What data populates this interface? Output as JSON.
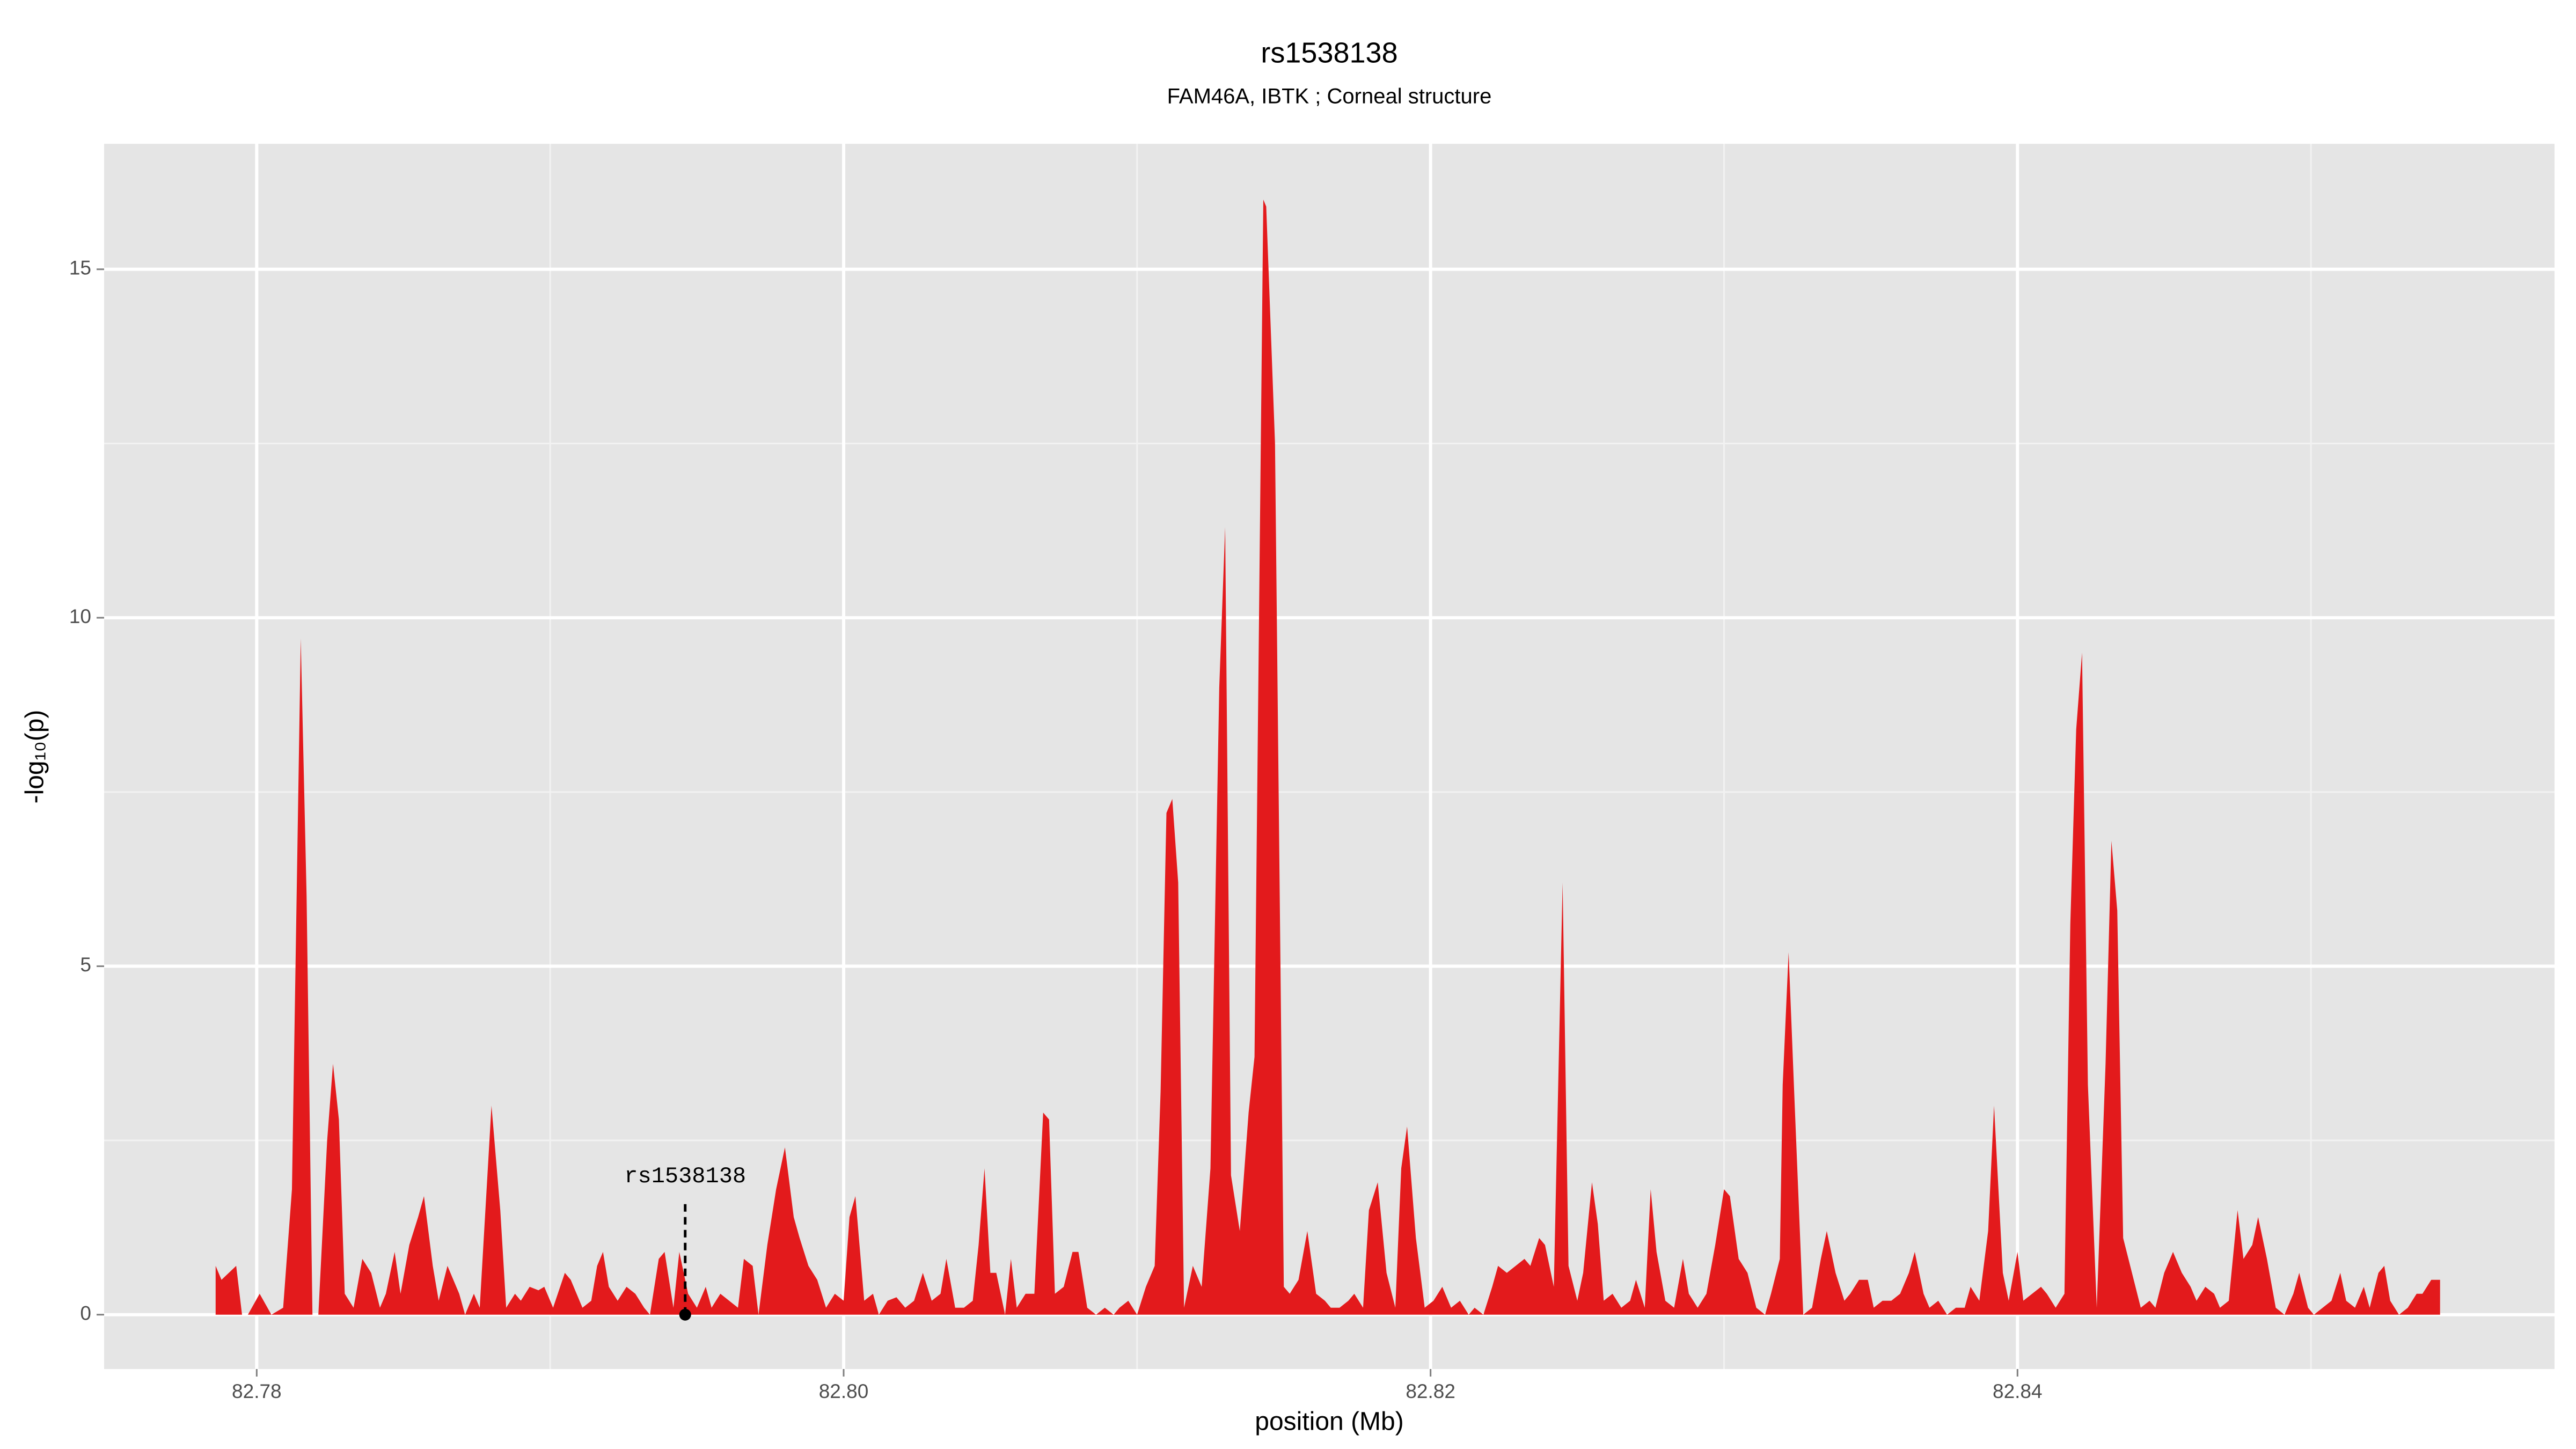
{
  "chart_data": {
    "type": "area",
    "title": "rs1538138",
    "subtitle": "FAM46A, IBTK ; Corneal structure",
    "xlabel": "position (Mb)",
    "ylabel": "-log₁₀(p)",
    "xlim": [
      82.7748,
      82.8583
    ],
    "ylim": [
      -0.78,
      16.8
    ],
    "xticks": [
      82.78,
      {
        "value": 82.8,
        "label": "82.80"
      },
      82.82,
      82.84
    ],
    "yticks": [
      0,
      5,
      10,
      15
    ],
    "xminorticks": [
      82.79,
      82.81,
      82.83,
      82.85
    ],
    "yminorticks": [
      2.5,
      7.5,
      12.5
    ],
    "grid": true,
    "series": [
      {
        "color": "#e31a1c",
        "x": [
          82.7786,
          82.7788,
          82.7793,
          82.7795,
          82.7797,
          82.7801,
          82.7805,
          82.7809,
          82.7812,
          82.7815,
          82.7817,
          82.7819,
          82.7821,
          82.7824,
          82.7826,
          82.7828,
          82.783,
          82.7833,
          82.7836,
          82.7839,
          82.7842,
          82.7844,
          82.7847,
          82.7849,
          82.7852,
          82.7855,
          82.7857,
          82.786,
          82.7862,
          82.7865,
          82.7869,
          82.7871,
          82.7874,
          82.7876,
          82.788,
          82.7883,
          82.7885,
          82.7888,
          82.789,
          82.7893,
          82.7896,
          82.7898,
          82.7901,
          82.7905,
          82.7907,
          82.7911,
          82.7914,
          82.7916,
          82.7918,
          82.792,
          82.7923,
          82.7926,
          82.7929,
          82.7932,
          82.7934,
          82.7937,
          82.7939,
          82.7942,
          82.7944,
          82.7947,
          82.795,
          82.7953,
          82.7955,
          82.7958,
          82.7961,
          82.7964,
          82.7966,
          82.7969,
          82.7971,
          82.7974,
          82.7977,
          82.798,
          82.7983,
          82.7985,
          82.7988,
          82.7991,
          82.7994,
          82.7997,
          82.8,
          82.8002,
          82.8004,
          82.8007,
          82.801,
          82.8012,
          82.8015,
          82.8018,
          82.8021,
          82.8024,
          82.8027,
          82.803,
          82.8033,
          82.8035,
          82.8038,
          82.8041,
          82.8044,
          82.8046,
          82.8048,
          82.805,
          82.8052,
          82.8055,
          82.8057,
          82.8059,
          82.8062,
          82.8065,
          82.8068,
          82.807,
          82.8072,
          82.8075,
          82.8078,
          82.808,
          82.8083,
          82.8086,
          82.8089,
          82.8092,
          82.8094,
          82.8097,
          82.81,
          82.8103,
          82.8106,
          82.8108,
          82.811,
          82.8112,
          82.8114,
          82.8116,
          82.8119,
          82.8122,
          82.8125,
          82.8128,
          82.813,
          82.8132,
          82.8135,
          82.8138,
          82.814,
          82.8143,
          82.8144,
          82.8147,
          82.815,
          82.8152,
          82.8155,
          82.8158,
          82.8161,
          82.8164,
          82.8166,
          82.8169,
          82.8172,
          82.8174,
          82.8177,
          82.8179,
          82.8182,
          82.8185,
          82.8188,
          82.819,
          82.8192,
          82.8195,
          82.8198,
          82.8201,
          82.8204,
          82.8207,
          82.821,
          82.8213,
          82.8215,
          82.8218,
          82.8221,
          82.8223,
          82.8226,
          82.8229,
          82.8232,
          82.8234,
          82.8237,
          82.8239,
          82.8242,
          82.8245,
          82.8247,
          82.825,
          82.8252,
          82.8255,
          82.8257,
          82.8259,
          82.8262,
          82.8265,
          82.8268,
          82.827,
          82.8273,
          82.8275,
          82.8277,
          82.828,
          82.8283,
          82.8286,
          82.8288,
          82.8291,
          82.8294,
          82.8297,
          82.83,
          82.8302,
          82.8305,
          82.8308,
          82.8311,
          82.8314,
          82.8316,
          82.8319,
          82.832,
          82.8322,
          82.8324,
          82.8327,
          82.833,
          82.8333,
          82.8335,
          82.8338,
          82.8341,
          82.8343,
          82.8346,
          82.8349,
          82.8351,
          82.8354,
          82.8357,
          82.836,
          82.8363,
          82.8365,
          82.8368,
          82.837,
          82.8373,
          82.8376,
          82.8379,
          82.8382,
          82.8384,
          82.8387,
          82.839,
          82.8392,
          82.8395,
          82.8397,
          82.84,
          82.8402,
          82.8405,
          82.8408,
          82.841,
          82.8413,
          82.8416,
          82.8418,
          82.842,
          82.8422,
          82.8424,
          82.8427,
          82.843,
          82.8432,
          82.8434,
          82.8436,
          82.8439,
          82.8442,
          82.8445,
          82.8447,
          82.845,
          82.8453,
          82.8456,
          82.8459,
          82.8461,
          82.8464,
          82.8467,
          82.8469,
          82.8472,
          82.8475,
          82.8477,
          82.848,
          82.8482,
          82.8485,
          82.8488,
          82.8491,
          82.8494,
          82.8496,
          82.8499,
          82.8501,
          82.8504,
          82.8507,
          82.851,
          82.8512,
          82.8515,
          82.8518,
          82.852,
          82.8523,
          82.8525,
          82.8527,
          82.853,
          82.8533,
          82.8536,
          82.8538,
          82.8541,
          82.8544
        ],
        "values": [
          0.7,
          0.5,
          0.7,
          0,
          0,
          0.3,
          0,
          0.1,
          1.8,
          9.7,
          6,
          0,
          0,
          2.5,
          3.6,
          2.8,
          0.3,
          0.1,
          0.8,
          0.6,
          0.1,
          0.3,
          0.9,
          0.3,
          1.0,
          1.4,
          1.7,
          0.7,
          0.2,
          0.7,
          0.3,
          0,
          0.3,
          0.1,
          3.0,
          1.5,
          0.1,
          0.3,
          0.2,
          0.4,
          0.35,
          0.4,
          0.1,
          0.6,
          0.5,
          0.1,
          0.2,
          0.7,
          0.9,
          0.4,
          0.2,
          0.4,
          0.3,
          0.1,
          0,
          0.8,
          0.9,
          0.1,
          0.9,
          0.3,
          0.1,
          0.4,
          0.1,
          0.3,
          0.2,
          0.1,
          0.8,
          0.7,
          0,
          1.0,
          1.8,
          2.4,
          1.4,
          1.1,
          0.7,
          0.5,
          0.1,
          0.3,
          0.2,
          1.4,
          1.7,
          0.2,
          0.3,
          0,
          0.2,
          0.25,
          0.1,
          0.2,
          0.6,
          0.2,
          0.3,
          0.8,
          0.1,
          0.1,
          0.2,
          1.0,
          2.1,
          0.6,
          0.6,
          0,
          0.8,
          0.1,
          0.3,
          0.3,
          2.9,
          2.8,
          0.3,
          0.4,
          0.9,
          0.9,
          0.1,
          0,
          0.1,
          0,
          0.1,
          0.2,
          0,
          0.4,
          0.7,
          3.2,
          7.2,
          7.4,
          6.2,
          0.1,
          0.7,
          0.4,
          2.1,
          9.0,
          11.3,
          2.0,
          1.2,
          2.9,
          3.7,
          16.0,
          15.9,
          12.5,
          0.4,
          0.3,
          0.5,
          1.2,
          0.3,
          0.2,
          0.1,
          0.1,
          0.2,
          0.3,
          0.1,
          1.5,
          1.9,
          0.6,
          0.1,
          2.1,
          2.7,
          1.1,
          0.1,
          0.2,
          0.4,
          0.1,
          0.2,
          0,
          0.1,
          0,
          0.4,
          0.7,
          0.6,
          0.7,
          0.8,
          0.7,
          1.1,
          1.0,
          0.4,
          6.2,
          0.7,
          0.2,
          0.6,
          1.9,
          1.3,
          0.2,
          0.3,
          0.1,
          0.2,
          0.5,
          0.1,
          1.8,
          0.9,
          0.2,
          0.1,
          0.8,
          0.3,
          0.1,
          0.3,
          1.0,
          1.8,
          1.7,
          0.8,
          0.6,
          0.1,
          0,
          0.3,
          0.8,
          3.3,
          5.2,
          3.1,
          0,
          0.1,
          0.8,
          1.2,
          0.6,
          0.2,
          0.3,
          0.5,
          0.5,
          0.1,
          0.2,
          0.2,
          0.3,
          0.6,
          0.9,
          0.3,
          0.1,
          0.2,
          0,
          0.1,
          0.1,
          0.4,
          0.2,
          1.2,
          3.0,
          0.6,
          0.2,
          0.9,
          0.2,
          0.3,
          0.4,
          0.3,
          0.1,
          0.3,
          5.6,
          8.4,
          9.5,
          3.3,
          0.1,
          3.6,
          6.8,
          5.8,
          1.1,
          0.6,
          0.1,
          0.2,
          0.1,
          0.6,
          0.9,
          0.6,
          0.4,
          0.2,
          0.4,
          0.3,
          0.1,
          0.2,
          1.5,
          0.8,
          1.0,
          1.4,
          0.8,
          0.1,
          0,
          0.3,
          0.6,
          0.1,
          0,
          0.1,
          0.2,
          0.6,
          0.2,
          0.1,
          0.4,
          0.1,
          0.6,
          0.7,
          0.2,
          0,
          0.1,
          0.3,
          0.3,
          0.5,
          0.5
        ]
      }
    ],
    "annotations": [
      {
        "text": "rs1538138",
        "x": 82.7946,
        "y": 0
      }
    ]
  }
}
